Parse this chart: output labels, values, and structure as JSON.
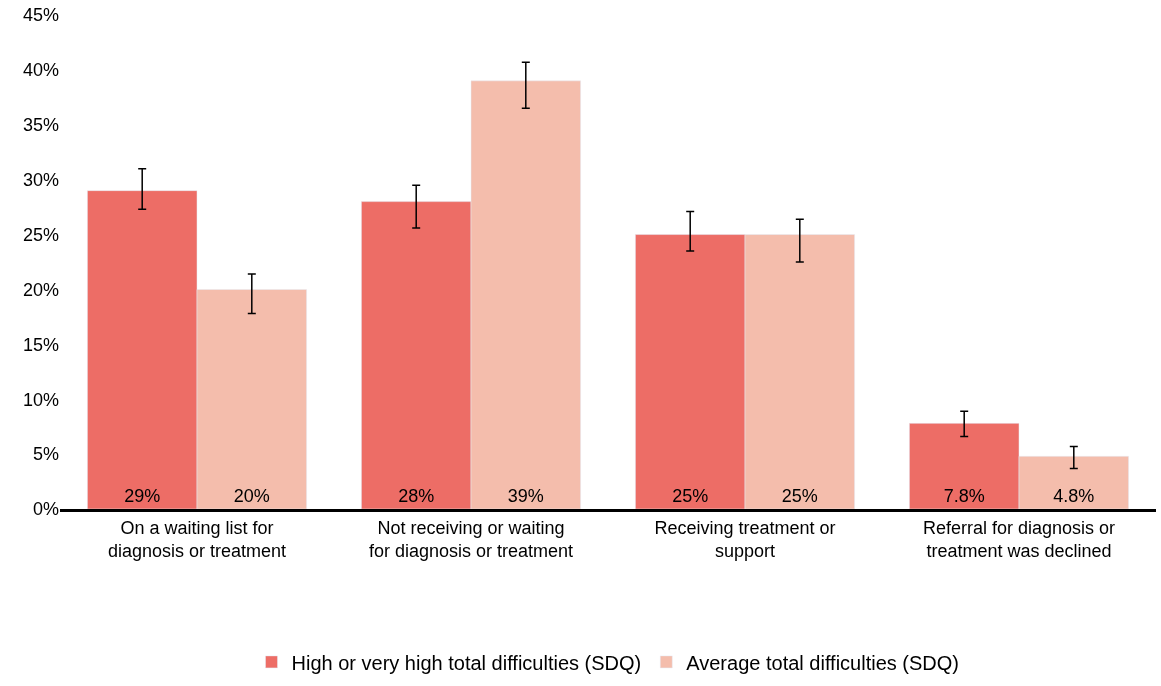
{
  "chart_data": {
    "type": "bar",
    "categories": [
      "On a waiting list for diagnosis or treatment",
      "Not receiving or waiting for diagnosis or treatment",
      "Receiving treatment or support",
      "Referral for diagnosis or treatment was declined"
    ],
    "series": [
      {
        "name": "High or very high total difficulties (SDQ)",
        "color": "#ed6d66",
        "values": [
          29,
          28,
          25,
          7.8
        ],
        "value_labels": [
          "29%",
          "28%",
          "25%",
          "7.8%"
        ],
        "errors": [
          [
            27.3,
            31.0
          ],
          [
            25.6,
            29.5
          ],
          [
            23.5,
            27.1
          ],
          [
            6.6,
            8.9
          ]
        ]
      },
      {
        "name": "Average total difficulties (SDQ)",
        "color": "#f4bdac",
        "values": [
          20,
          39,
          25,
          4.8
        ],
        "value_labels": [
          "20%",
          "39%",
          "25%",
          "4.8%"
        ],
        "errors": [
          [
            17.8,
            21.4
          ],
          [
            36.5,
            40.7
          ],
          [
            22.5,
            26.4
          ],
          [
            3.7,
            5.7
          ]
        ]
      }
    ],
    "ylim": [
      0,
      45
    ],
    "yticks": [
      {
        "value": 0,
        "label": "0%"
      },
      {
        "value": 5,
        "label": "5%"
      },
      {
        "value": 10,
        "label": "10%"
      },
      {
        "value": 15,
        "label": "15%"
      },
      {
        "value": 20,
        "label": "20%"
      },
      {
        "value": 25,
        "label": "25%"
      },
      {
        "value": 30,
        "label": "30%"
      },
      {
        "value": 35,
        "label": "35%"
      },
      {
        "value": 40,
        "label": "40%"
      },
      {
        "value": 45,
        "label": "45%"
      }
    ],
    "legend": "bottom"
  }
}
